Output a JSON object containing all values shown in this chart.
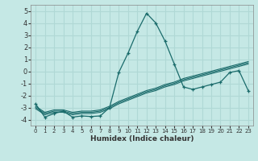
{
  "xlabel": "Humidex (Indice chaleur)",
  "xlim": [
    -0.5,
    23.5
  ],
  "ylim": [
    -4.5,
    5.5
  ],
  "yticks": [
    -4,
    -3,
    -2,
    -1,
    0,
    1,
    2,
    3,
    4,
    5
  ],
  "xticks": [
    0,
    1,
    2,
    3,
    4,
    5,
    6,
    7,
    8,
    9,
    10,
    11,
    12,
    13,
    14,
    15,
    16,
    17,
    18,
    19,
    20,
    21,
    22,
    23
  ],
  "bg_color": "#c5e8e5",
  "grid_color": "#b0d8d5",
  "line_color": "#1a6b6b",
  "line_main": {
    "x": [
      0,
      1,
      2,
      3,
      4,
      5,
      6,
      7,
      8,
      9,
      10,
      11,
      12,
      13,
      14,
      15,
      16,
      17,
      18,
      19,
      20,
      21,
      22,
      23
    ],
    "y": [
      -2.7,
      -3.8,
      -3.5,
      -3.3,
      -3.8,
      -3.7,
      -3.75,
      -3.7,
      -3.0,
      -0.1,
      1.5,
      3.3,
      4.8,
      4.0,
      2.5,
      0.6,
      -1.3,
      -1.5,
      -1.3,
      -1.1,
      -0.9,
      -0.1,
      0.05,
      -1.6
    ]
  },
  "line_trend1": {
    "x": [
      0,
      1,
      2,
      3,
      4,
      5,
      6,
      7,
      8,
      9,
      10,
      11,
      12,
      13,
      14,
      15,
      16,
      17,
      18,
      19,
      20,
      21,
      22,
      23
    ],
    "y": [
      -3.0,
      -3.5,
      -3.3,
      -3.3,
      -3.5,
      -3.4,
      -3.4,
      -3.3,
      -3.0,
      -2.6,
      -2.3,
      -2.0,
      -1.7,
      -1.5,
      -1.2,
      -1.0,
      -0.7,
      -0.5,
      -0.3,
      -0.1,
      0.1,
      0.3,
      0.5,
      0.7
    ]
  },
  "line_trend2": {
    "x": [
      0,
      1,
      2,
      3,
      4,
      5,
      6,
      7,
      8,
      9,
      10,
      11,
      12,
      13,
      14,
      15,
      16,
      17,
      18,
      19,
      20,
      21,
      22,
      23
    ],
    "y": [
      -3.1,
      -3.6,
      -3.4,
      -3.4,
      -3.6,
      -3.5,
      -3.5,
      -3.4,
      -3.1,
      -2.7,
      -2.4,
      -2.1,
      -1.8,
      -1.6,
      -1.3,
      -1.1,
      -0.8,
      -0.6,
      -0.4,
      -0.2,
      0.0,
      0.2,
      0.4,
      0.6
    ]
  },
  "line_trend3": {
    "x": [
      0,
      1,
      2,
      3,
      4,
      5,
      6,
      7,
      8,
      9,
      10,
      11,
      12,
      13,
      14,
      15,
      16,
      17,
      18,
      19,
      20,
      21,
      22,
      23
    ],
    "y": [
      -2.9,
      -3.4,
      -3.2,
      -3.2,
      -3.4,
      -3.3,
      -3.3,
      -3.2,
      -2.9,
      -2.5,
      -2.2,
      -1.9,
      -1.6,
      -1.4,
      -1.1,
      -0.9,
      -0.6,
      -0.4,
      -0.2,
      0.0,
      0.2,
      0.4,
      0.6,
      0.8
    ]
  }
}
